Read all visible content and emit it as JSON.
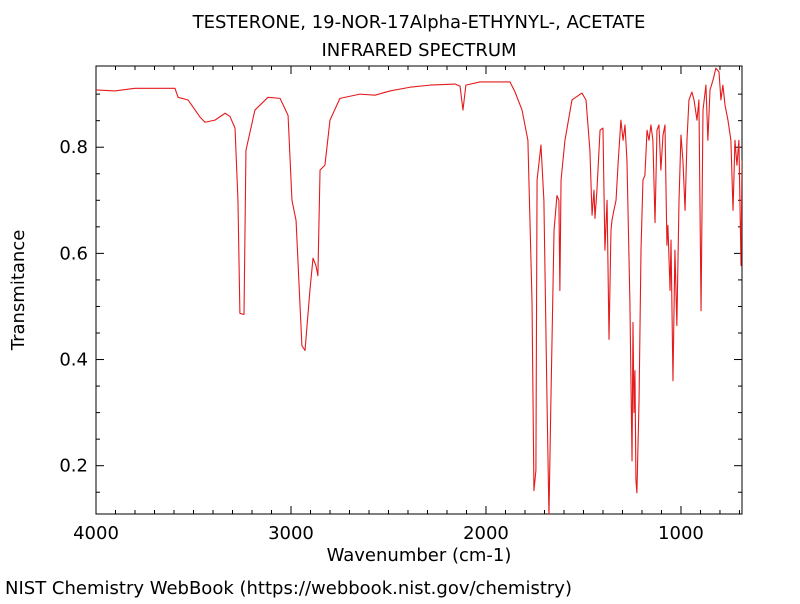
{
  "chart_data": {
    "type": "line",
    "title": "TESTERONE, 19-NOR-17Alpha-ETHYNYL-, ACETATE",
    "subtitle": "INFRARED SPECTRUM",
    "x_label": "Wavenumber (cm-1)",
    "y_label": "Transmitance",
    "footer": "NIST Chemistry WebBook (https://webbook.nist.gov/chemistry)",
    "xlim": [
      4000,
      687
    ],
    "ylim": [
      0.109,
      0.953
    ],
    "xticks": [
      4000,
      3000,
      2000,
      1000
    ],
    "yticks": [
      0.2,
      0.4,
      0.6,
      0.8
    ],
    "xminorticks": [
      3900,
      3800,
      3700,
      3600,
      3500,
      3400,
      3300,
      3200,
      3100,
      2900,
      2800,
      2700,
      2600,
      2500,
      2400,
      2300,
      2200,
      2100,
      1900,
      1800,
      1700,
      1600,
      1500,
      1400,
      1300,
      1200,
      1100,
      900,
      800,
      700
    ],
    "yminorticks": [
      0.15,
      0.25,
      0.3,
      0.35,
      0.45,
      0.5,
      0.55,
      0.65,
      0.7,
      0.75,
      0.85,
      0.9
    ],
    "grid": false,
    "color": "#e41a1c",
    "x": [
      4000,
      3903,
      3800,
      3595,
      3579,
      3528,
      3467,
      3441,
      3390,
      3338,
      3313,
      3287,
      3272,
      3262,
      3241,
      3231,
      3185,
      3118,
      3056,
      3015,
      2995,
      2974,
      2944,
      2928,
      2903,
      2887,
      2872,
      2862,
      2851,
      2826,
      2800,
      2749,
      2646,
      2569,
      2492,
      2390,
      2287,
      2159,
      2133,
      2118,
      2103,
      2031,
      1877,
      1851,
      1815,
      1785,
      1764,
      1754,
      1744,
      1738,
      1718,
      1703,
      1687,
      1677,
      1667,
      1651,
      1636,
      1626,
      1621,
      1615,
      1595,
      1559,
      1508,
      1487,
      1467,
      1456,
      1446,
      1441,
      1431,
      1415,
      1400,
      1390,
      1379,
      1369,
      1359,
      1354,
      1344,
      1333,
      1323,
      1308,
      1297,
      1287,
      1277,
      1262,
      1251,
      1246,
      1241,
      1236,
      1231,
      1226,
      1215,
      1205,
      1195,
      1185,
      1174,
      1164,
      1154,
      1144,
      1133,
      1123,
      1113,
      1103,
      1092,
      1082,
      1072,
      1067,
      1056,
      1051,
      1041,
      1031,
      1021,
      1010,
      1000,
      990,
      979,
      969,
      959,
      944,
      933,
      918,
      908,
      897,
      887,
      872,
      862,
      851,
      836,
      821,
      805,
      795,
      785,
      774,
      759,
      744,
      733,
      723,
      713,
      703,
      692,
      687
    ],
    "values": [
      0.908,
      0.906,
      0.911,
      0.911,
      0.894,
      0.889,
      0.857,
      0.847,
      0.851,
      0.864,
      0.858,
      0.836,
      0.7,
      0.487,
      0.485,
      0.794,
      0.87,
      0.894,
      0.892,
      0.86,
      0.7,
      0.662,
      0.426,
      0.417,
      0.53,
      0.591,
      0.577,
      0.558,
      0.757,
      0.766,
      0.851,
      0.892,
      0.9,
      0.898,
      0.906,
      0.913,
      0.917,
      0.919,
      0.915,
      0.87,
      0.917,
      0.923,
      0.923,
      0.904,
      0.87,
      0.813,
      0.511,
      0.153,
      0.191,
      0.738,
      0.804,
      0.7,
      0.323,
      0.105,
      0.323,
      0.643,
      0.709,
      0.7,
      0.53,
      0.738,
      0.813,
      0.889,
      0.902,
      0.889,
      0.794,
      0.672,
      0.719,
      0.666,
      0.719,
      0.832,
      0.836,
      0.606,
      0.7,
      0.438,
      0.643,
      0.662,
      0.681,
      0.7,
      0.766,
      0.851,
      0.813,
      0.842,
      0.775,
      0.511,
      0.209,
      0.47,
      0.3,
      0.379,
      0.172,
      0.149,
      0.323,
      0.606,
      0.738,
      0.747,
      0.832,
      0.813,
      0.842,
      0.813,
      0.658,
      0.832,
      0.842,
      0.757,
      0.823,
      0.842,
      0.615,
      0.653,
      0.53,
      0.625,
      0.36,
      0.606,
      0.464,
      0.7,
      0.823,
      0.775,
      0.681,
      0.815,
      0.889,
      0.904,
      0.889,
      0.851,
      0.889,
      0.492,
      0.87,
      0.917,
      0.813,
      0.908,
      0.926,
      0.949,
      0.942,
      0.889,
      0.917,
      0.879,
      0.851,
      0.813,
      0.681,
      0.813,
      0.766,
      0.813,
      0.577,
      0.775
    ]
  }
}
